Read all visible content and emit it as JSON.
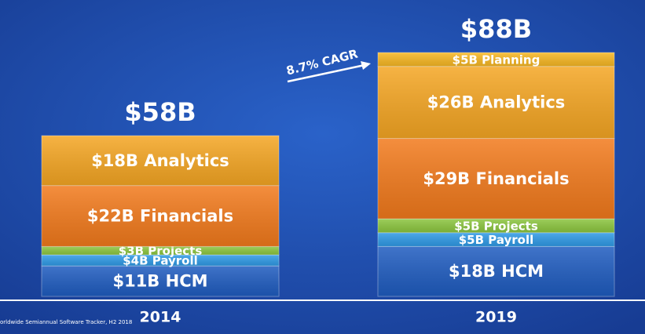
{
  "chart_data": {
    "type": "stacked-bar",
    "categories": [
      "2014",
      "2019"
    ],
    "series": [
      {
        "color": "#1f5cc0",
        "values": [
          11,
          18
        ],
        "value_labels": [
          "$11B HCM",
          "$18B HCM"
        ]
      },
      {
        "color": "#2f9ae6",
        "values": [
          4,
          5
        ],
        "value_labels": [
          "$4B Payroll",
          "$5B Payroll"
        ]
      },
      {
        "color": "#8cc63f",
        "values": [
          3,
          5
        ],
        "value_labels": [
          "$3B Projects",
          "$5B Projects"
        ]
      },
      {
        "color": "#f27a1c",
        "values": [
          22,
          29
        ],
        "value_labels": [
          "$22B Financials",
          "$29B Financials"
        ]
      },
      {
        "color": "#f5a623",
        "values": [
          18,
          26
        ],
        "value_labels": [
          "$18B Analytics",
          "$26B Analytics"
        ]
      },
      {
        "color": "#f7b722",
        "values": [
          null,
          5
        ],
        "value_labels": [
          null,
          "$5B Planning"
        ]
      }
    ],
    "totals": {
      "values": [
        58,
        88
      ],
      "value_labels": [
        "$58B",
        "$88B"
      ]
    },
    "annotation": "8.7% CAGR",
    "source": "orldwide Semiannual Software Tracker, H2 2018"
  }
}
